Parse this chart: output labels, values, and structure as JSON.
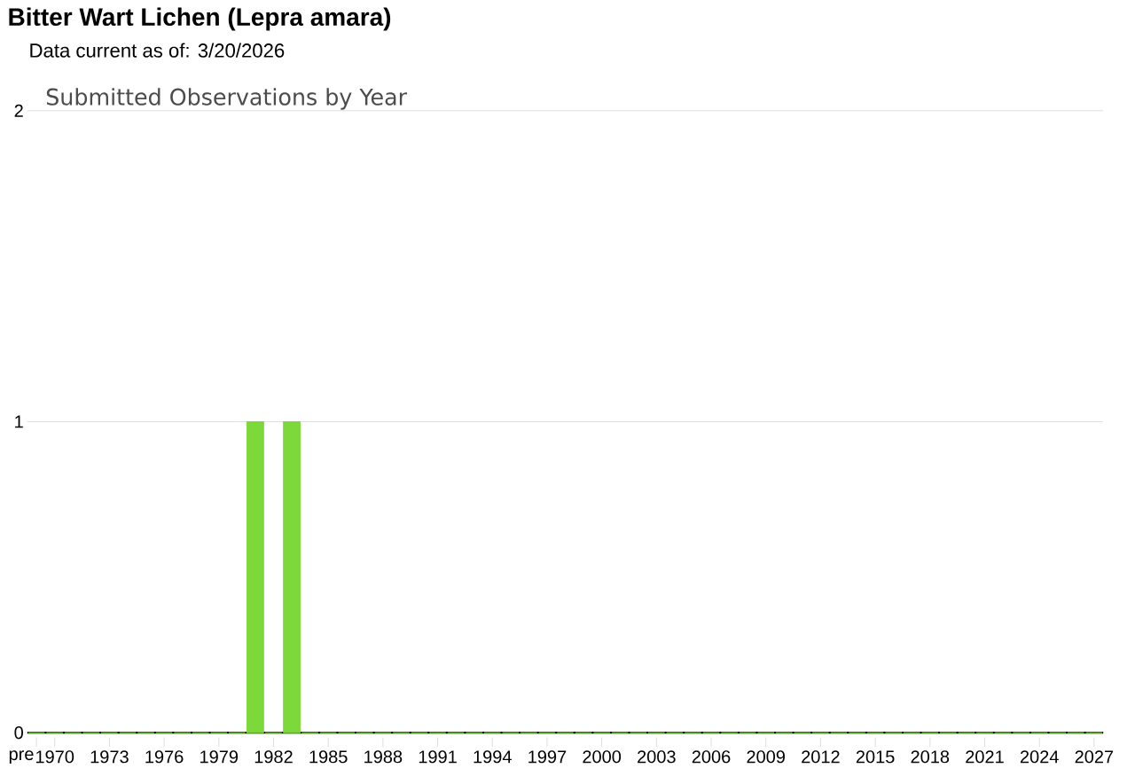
{
  "chart_data": {
    "type": "bar",
    "title": "Bitter Wart Lichen   (Lepra amara)",
    "subtitle": "Data current as of: 3/20/2026",
    "annotations": [
      "Submitted Observations by Year"
    ],
    "categories": [
      "pre",
      "1970",
      null,
      null,
      "1973",
      null,
      null,
      "1976",
      null,
      null,
      "1979",
      null,
      null,
      "1982",
      null,
      null,
      "1985",
      null,
      null,
      "1988",
      null,
      null,
      "1991",
      null,
      null,
      "1994",
      null,
      null,
      "1997",
      null,
      null,
      "2000",
      null,
      null,
      "2003",
      null,
      null,
      "2006",
      null,
      null,
      "2009",
      null,
      null,
      "2012",
      null,
      null,
      "2015",
      null,
      null,
      "2018",
      null,
      null,
      "2021",
      null,
      null,
      "2024",
      null,
      null,
      "2027"
    ],
    "values": [
      0,
      0,
      0,
      0,
      0,
      0,
      0,
      0,
      0,
      0,
      0,
      0,
      1,
      0,
      1,
      0,
      0,
      0,
      0,
      0,
      0,
      0,
      0,
      0,
      0,
      0,
      0,
      0,
      0,
      0,
      0,
      0,
      0,
      0,
      0,
      0,
      0,
      0,
      0,
      0,
      0,
      0,
      0,
      0,
      0,
      0,
      0,
      0,
      0,
      0,
      0,
      0,
      0,
      0,
      0,
      0,
      0,
      0,
      0
    ],
    "color": "#7dd83a",
    "ylim": [
      0,
      2
    ],
    "yticks": [
      0,
      1,
      2
    ],
    "grid": "y"
  }
}
